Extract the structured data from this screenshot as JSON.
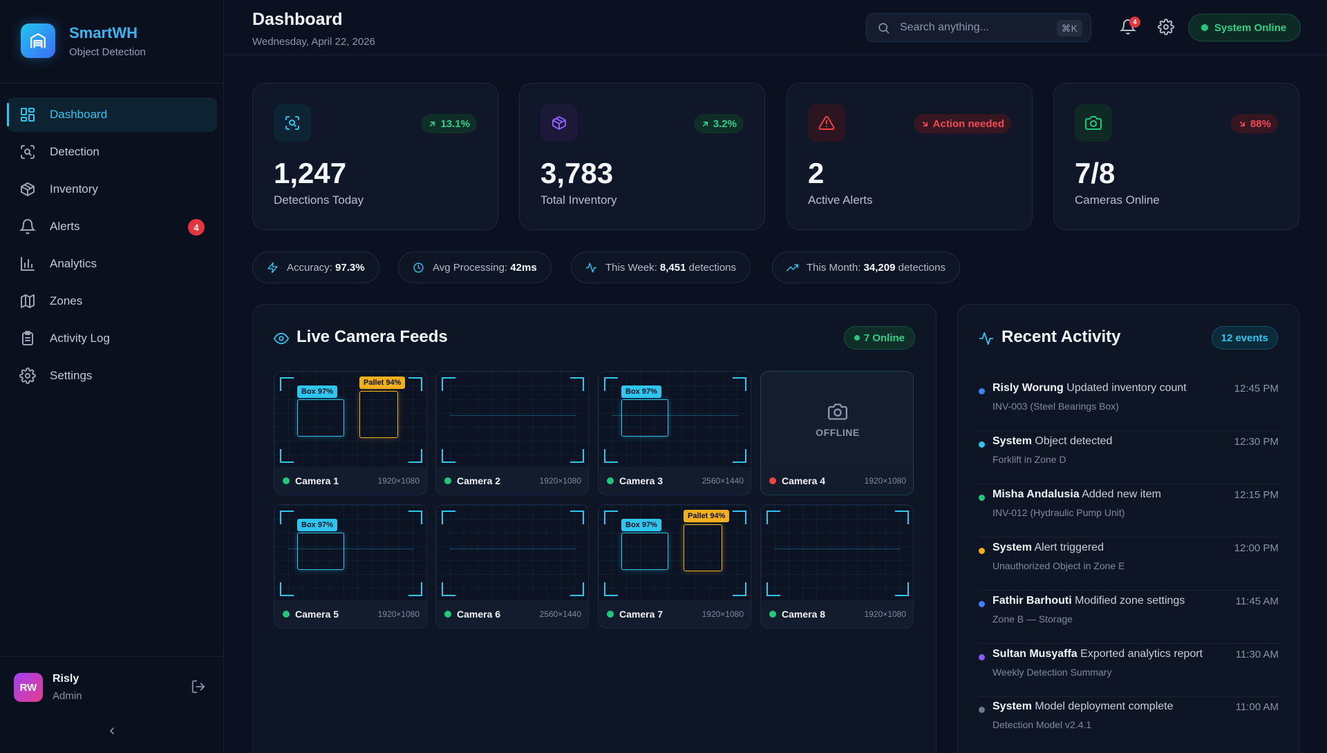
{
  "brand": {
    "name": "SmartWH",
    "subtitle": "Object Detection"
  },
  "nav": [
    {
      "label": "Dashboard",
      "icon": "grid-icon",
      "active": true
    },
    {
      "label": "Detection",
      "icon": "scan-icon"
    },
    {
      "label": "Inventory",
      "icon": "box-icon"
    },
    {
      "label": "Alerts",
      "icon": "bell-icon",
      "badge": "4"
    },
    {
      "label": "Analytics",
      "icon": "bar-chart-icon"
    },
    {
      "label": "Zones",
      "icon": "map-icon"
    },
    {
      "label": "Activity Log",
      "icon": "clipboard-icon"
    },
    {
      "label": "Settings",
      "icon": "gear-icon"
    }
  ],
  "user": {
    "initials": "RW",
    "name": "Risly",
    "role": "Admin"
  },
  "header": {
    "title": "Dashboard",
    "date": "Wednesday, April 22, 2026",
    "search_placeholder": "Search anything...",
    "search_shortcut": "⌘K",
    "notification_count": "4",
    "status": "System Online"
  },
  "stats": [
    {
      "value": "1,247",
      "label": "Detections Today",
      "badge": "13.1%",
      "trend": "up",
      "icon": "scan-icon",
      "color": "#2ec5ee"
    },
    {
      "value": "3,783",
      "label": "Total Inventory",
      "badge": "3.2%",
      "trend": "up",
      "icon": "box-icon",
      "color": "#8b5cf6"
    },
    {
      "value": "2",
      "label": "Active Alerts",
      "badge": "Action needed",
      "trend": "down",
      "icon": "warning-icon",
      "color": "#ef4444"
    },
    {
      "value": "7/8",
      "label": "Cameras Online",
      "badge": "88%",
      "trend": "down",
      "icon": "camera-icon",
      "color": "#22c77c"
    }
  ],
  "metrics": {
    "accuracy": {
      "label": "Accuracy:",
      "value": "97.3%"
    },
    "processing": {
      "label": "Avg Processing:",
      "value": "42ms"
    },
    "week": {
      "label": "This Week:",
      "value": "8,451",
      "suffix": "detections"
    },
    "month": {
      "label": "This Month:",
      "value": "34,209",
      "suffix": "detections"
    }
  },
  "camera_panel": {
    "title": "Live Camera Feeds",
    "online_label": "7 Online",
    "offline_label": "OFFLINE",
    "cameras": [
      {
        "name": "Camera 1",
        "resolution": "1920×1080",
        "status": "online",
        "tags": [
          "Box 97%",
          "Pallet 94%"
        ]
      },
      {
        "name": "Camera 2",
        "resolution": "1920×1080",
        "status": "online",
        "tags": []
      },
      {
        "name": "Camera 3",
        "resolution": "2560×1440",
        "status": "online",
        "tags": [
          "Box 97%"
        ]
      },
      {
        "name": "Camera 4",
        "resolution": "1920×1080",
        "status": "offline",
        "tags": []
      },
      {
        "name": "Camera 5",
        "resolution": "1920×1080",
        "status": "online",
        "tags": [
          "Box 97%"
        ]
      },
      {
        "name": "Camera 6",
        "resolution": "2560×1440",
        "status": "online",
        "tags": []
      },
      {
        "name": "Camera 7",
        "resolution": "1920×1080",
        "status": "online",
        "tags": [
          "Box 97%",
          "Pallet 94%"
        ]
      },
      {
        "name": "Camera 8",
        "resolution": "1920×1080",
        "status": "online",
        "tags": []
      }
    ]
  },
  "activity": {
    "title": "Recent Activity",
    "events_label": "12 events",
    "items": [
      {
        "actor": "Risly Worung",
        "action": "Updated inventory count",
        "detail": "INV-003 (Steel Bearings Box)",
        "time": "12:45 PM",
        "color": "#3b82f6"
      },
      {
        "actor": "System",
        "action": "Object detected",
        "detail": "Forklift in Zone D",
        "time": "12:30 PM",
        "color": "#2ec5ee"
      },
      {
        "actor": "Misha Andalusia",
        "action": "Added new item",
        "detail": "INV-012 (Hydraulic Pump Unit)",
        "time": "12:15 PM",
        "color": "#22c77c"
      },
      {
        "actor": "System",
        "action": "Alert triggered",
        "detail": "Unauthorized Object in Zone E",
        "time": "12:00 PM",
        "color": "#f2b01e"
      },
      {
        "actor": "Fathir Barhouti",
        "action": "Modified zone settings",
        "detail": "Zone B — Storage",
        "time": "11:45 AM",
        "color": "#3b82f6"
      },
      {
        "actor": "Sultan Musyaffa",
        "action": "Exported analytics report",
        "detail": "Weekly Detection Summary",
        "time": "11:30 AM",
        "color": "#8b5cf6"
      },
      {
        "actor": "System",
        "action": "Model deployment complete",
        "detail": "Detection Model v2.4.1",
        "time": "11:00 AM",
        "color": "#6b7a90"
      }
    ]
  }
}
